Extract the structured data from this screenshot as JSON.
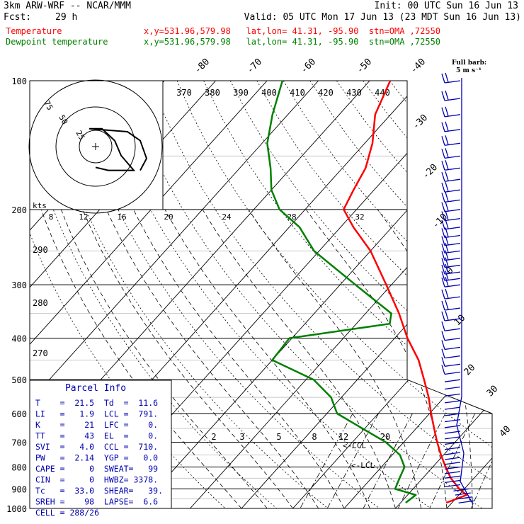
{
  "header": {
    "model": "3km ARW-WRF -- NCAR/MMM",
    "init": "Init: 00 UTC Sun 16 Jun 13",
    "fcst_label": "Fcst:",
    "fcst_value": "29 h",
    "valid": "Valid: 05 UTC Mon 17 Jun 13 (23 MDT Sun 16 Jun 13)",
    "temp_label": "Temperature",
    "temp_info": "x,y=531.96,579.98   lat,lon= 41.31, -95.90  stn=OMA ,72550",
    "dew_label": "Dewpoint temperature",
    "dew_info": "x,y=531.96,579.98   lat,lon= 41.31, -95.90  stn=OMA ,72550",
    "full_barb": "Full barb:",
    "full_barb_unit": "5 m s⁻¹"
  },
  "colors": {
    "temperature": "#ff0000",
    "dewpoint": "#008000",
    "wind": "#0000b0"
  },
  "pressure_labels": [
    "100",
    "200",
    "300",
    "400",
    "500",
    "600",
    "700",
    "800",
    "900",
    "1000"
  ],
  "temp_isotherm_labels": [
    "-80",
    "-70",
    "-60",
    "-50",
    "-40",
    "-30",
    "-20",
    "-10",
    "0",
    "10",
    "20",
    "30",
    "40"
  ],
  "theta_labels": [
    "370",
    "380",
    "390",
    "400",
    "410",
    "420",
    "430",
    "440"
  ],
  "left_theta_labels": [
    "290",
    "280",
    "270"
  ],
  "mixing_ratio_labels": [
    "2",
    "3",
    "5",
    "8",
    "12",
    "20"
  ],
  "hodograph": {
    "units": "kts",
    "ring_labels": [
      "75",
      "50",
      "25"
    ],
    "speed_labels": [
      "8",
      "12",
      "16",
      "20",
      "24",
      "28",
      "32"
    ]
  },
  "parcel_info": {
    "title": "Parcel Info",
    "rows": [
      "T    =  21.5  Td  =  11.6",
      "LI   =   1.9  LCL =  791.",
      "K    =    21  LFC =    0.",
      "TT   =    43  EL  =    0.",
      "SVI  =   4.0  CCL =  710.",
      "PW   =  2.14  YGP =   0.0",
      "CAPE =     0  SWEAT=   99",
      "CIN  =     0  HWBZ= 3378.",
      "Tc   =  33.0  SHEAR=   39.",
      "SREH =    98  LAPSE=  6.6",
      "CELL = 288/26"
    ]
  },
  "level_markers": [
    "<-CCL",
    "<-LCL"
  ],
  "chart_data": {
    "type": "line",
    "title": "",
    "xlabel": "",
    "ylabel": "",
    "y_axis": "pressure (hPa), log scale, 100 to 1000",
    "x_axis": "temperature (°C), skewed isotherms",
    "series": [
      {
        "name": "Temperature",
        "pressure": [
          970,
          930,
          900,
          850,
          800,
          750,
          700,
          650,
          600,
          550,
          500,
          450,
          400,
          350,
          300,
          250,
          220,
          200,
          180,
          160,
          140,
          120,
          100
        ],
        "values": [
          18.9,
          21.5,
          19.0,
          15.5,
          12.5,
          9.5,
          6.5,
          3.5,
          0.3,
          -3.0,
          -7.0,
          -11.5,
          -17.5,
          -23.5,
          -31.0,
          -40.0,
          -47.5,
          -52.5,
          -54.0,
          -55.5,
          -58.5,
          -63.0,
          -66.0
        ]
      },
      {
        "name": "Dewpoint temperature",
        "pressure": [
          970,
          930,
          900,
          850,
          800,
          750,
          700,
          650,
          600,
          550,
          500,
          450,
          400,
          370,
          350,
          300,
          250,
          220,
          200,
          180,
          160,
          140,
          120,
          100
        ],
        "values": [
          11.0,
          11.6,
          6.5,
          5.5,
          4.5,
          1.5,
          -3.5,
          -10.5,
          -18.0,
          -22.0,
          -28.5,
          -40.0,
          -40.5,
          -23.5,
          -25.0,
          -37.0,
          -51.0,
          -58.0,
          -65.0,
          -70.0,
          -74.0,
          -79.0,
          -83.0,
          -87.0
        ]
      }
    ],
    "hodograph_trace": [
      {
        "u": 0,
        "v": -7
      },
      {
        "u": 2,
        "v": -8
      },
      {
        "u": 4,
        "v": -8
      },
      {
        "u": 6,
        "v": -8
      },
      {
        "u": 4,
        "v": -3
      },
      {
        "u": 3,
        "v": 2
      },
      {
        "u": 1,
        "v": 6
      },
      {
        "u": -1,
        "v": 6
      },
      {
        "u": 5,
        "v": 5
      },
      {
        "u": 7,
        "v": 2
      },
      {
        "u": 8,
        "v": -4
      },
      {
        "u": 7,
        "v": -8
      }
    ],
    "wind_profile_pressures": [
      100,
      110,
      120,
      130,
      140,
      150,
      160,
      170,
      180,
      190,
      200,
      210,
      220,
      230,
      240,
      250,
      260,
      270,
      280,
      290,
      300,
      320,
      340,
      360,
      380,
      400,
      420,
      440,
      460,
      480,
      500,
      520,
      540,
      560,
      580,
      600,
      620,
      640,
      660,
      680,
      700,
      720,
      740,
      760,
      780,
      800,
      820,
      840,
      860,
      880,
      900,
      920,
      940,
      960
    ],
    "pressure_range": [
      100,
      1000
    ],
    "temperature_range": [
      -40,
      50
    ],
    "grid": true
  }
}
